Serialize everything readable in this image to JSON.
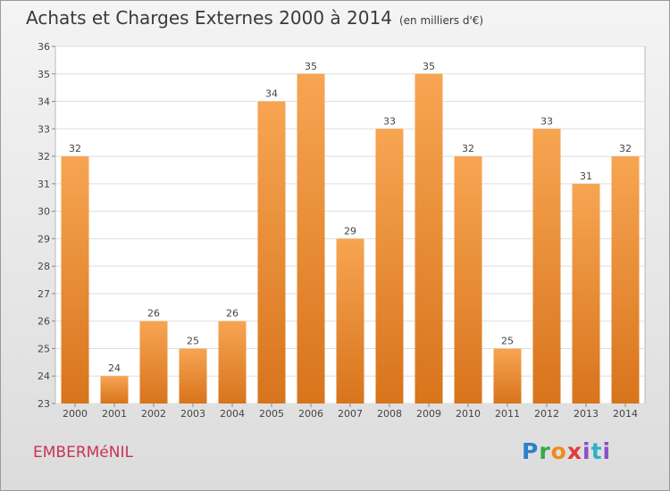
{
  "title": "Achats et Charges Externes 2000 à 2014",
  "unit": "(en milliers d'€)",
  "commune": "EMBERMéNIL",
  "logo": {
    "p": "P",
    "r": "r",
    "o": "o",
    "x": "x",
    "i": "i",
    "t": "t",
    "i2": "i"
  },
  "colors": {
    "bar_top": "#f7a552",
    "bar_bottom": "#d8741c",
    "label": "#c8325a"
  },
  "chart_data": {
    "type": "bar",
    "categories": [
      "2000",
      "2001",
      "2002",
      "2003",
      "2004",
      "2005",
      "2006",
      "2007",
      "2008",
      "2009",
      "2010",
      "2011",
      "2012",
      "2013",
      "2014"
    ],
    "values": [
      32,
      24,
      26,
      25,
      26,
      34,
      35,
      29,
      33,
      35,
      32,
      25,
      33,
      31,
      32
    ],
    "ylim": [
      23,
      36
    ],
    "yticks": [
      23,
      24,
      25,
      26,
      27,
      28,
      29,
      30,
      31,
      32,
      33,
      34,
      35,
      36
    ],
    "grid": true,
    "title": "Achats et Charges Externes 2000 à 2014",
    "xlabel": "",
    "ylabel": ""
  }
}
